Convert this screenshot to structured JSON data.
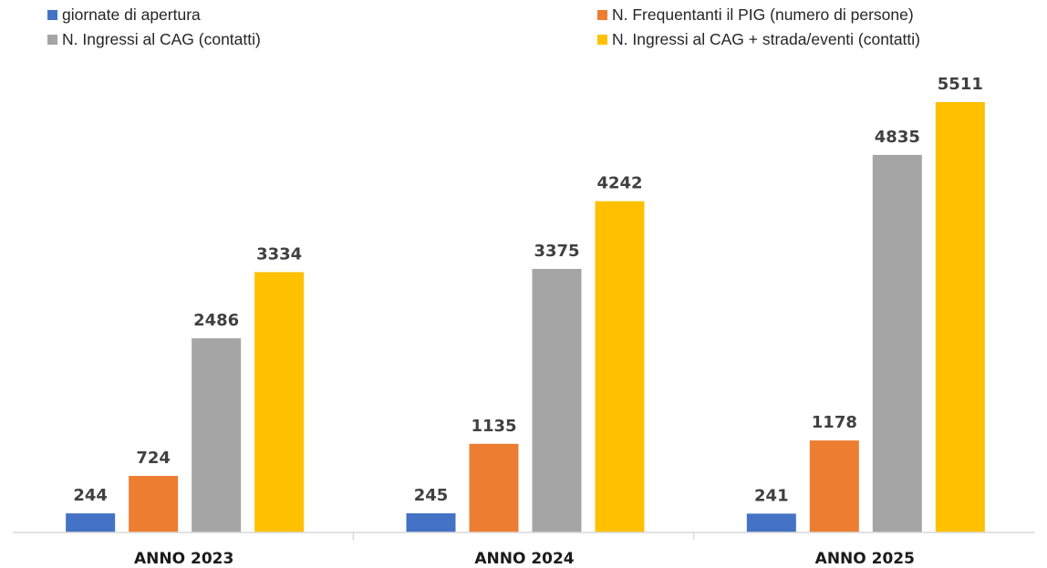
{
  "chart_data": {
    "type": "bar",
    "title": "",
    "xlabel": "",
    "ylabel": "",
    "ylim": [
      0,
      5800
    ],
    "grid": false,
    "legend_position": "top",
    "categories": [
      "ANNO 2023",
      "ANNO 2024",
      "ANNO 2025"
    ],
    "series": [
      {
        "name": "giornate di apertura",
        "color": "#4472C4",
        "values": [
          244,
          245,
          241
        ]
      },
      {
        "name": "N. Frequentanti il PIG (numero di persone)",
        "color": "#ED7D31",
        "values": [
          724,
          1135,
          1178
        ]
      },
      {
        "name": "N. Ingressi al CAG (contatti)",
        "color": "#A5A5A5",
        "values": [
          2486,
          3375,
          4835
        ]
      },
      {
        "name": "N. Ingressi al CAG + strada/eventi (contatti)",
        "color": "#FFC000",
        "values": [
          3334,
          4242,
          5511
        ]
      }
    ]
  }
}
